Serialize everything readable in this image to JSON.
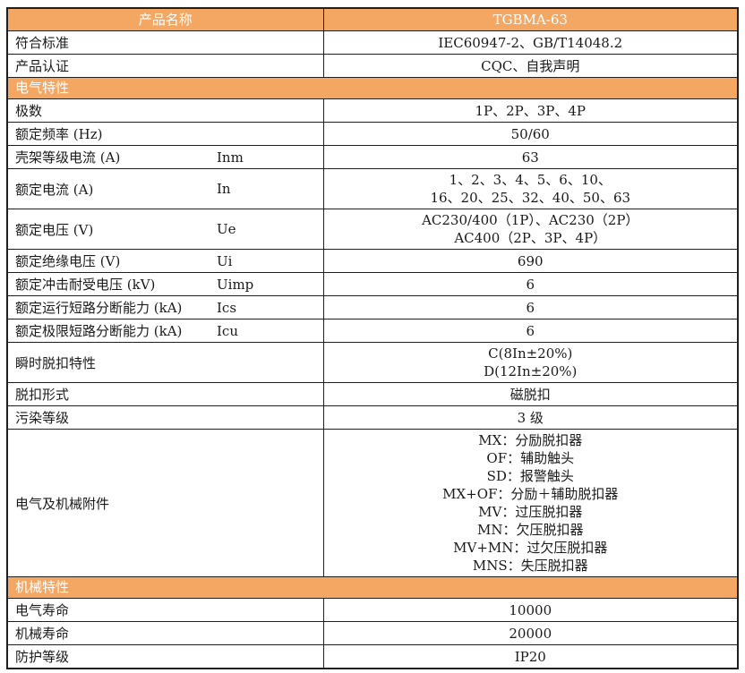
{
  "colors": {
    "accent": "#F4A763",
    "border": "#1F1F1F",
    "body_text": "#1A1A1A",
    "header_text": "#FFFFFF"
  },
  "header": {
    "label": "产品名称",
    "value": "TGBMA-63"
  },
  "rows": [
    {
      "type": "data",
      "label": "符合标准",
      "symbol": "",
      "lines": [
        "IEC60947-2、GB/T14048.2"
      ]
    },
    {
      "type": "data",
      "label": "产品认证",
      "symbol": "",
      "lines": [
        "CQC、自我声明"
      ]
    },
    {
      "type": "section",
      "title": "电气特性"
    },
    {
      "type": "data",
      "label": "极数",
      "symbol": "",
      "lines": [
        "1P、2P、3P、4P"
      ]
    },
    {
      "type": "data",
      "label": "额定频率 (Hz)",
      "symbol": "",
      "lines": [
        "50/60"
      ]
    },
    {
      "type": "data",
      "label": "壳架等级电流 (A)",
      "symbol": "Inm",
      "lines": [
        "63"
      ]
    },
    {
      "type": "data",
      "label": "额定电流 (A)",
      "symbol": "In",
      "lines": [
        "1、2、3、4、5、6、10、",
        "16、20、25、32、40、50、63"
      ]
    },
    {
      "type": "data",
      "label": "额定电压 (V)",
      "symbol": "Ue",
      "lines": [
        "AC230/400（1P）、AC230（2P）",
        "AC400（2P、3P、4P）"
      ]
    },
    {
      "type": "data",
      "label": "额定绝缘电压 (V)",
      "symbol": "Ui",
      "lines": [
        "690"
      ]
    },
    {
      "type": "data",
      "label": "额定冲击耐受电压 (kV)",
      "symbol": "Uimp",
      "lines": [
        "6"
      ]
    },
    {
      "type": "data",
      "label": "额定运行短路分断能力 (kA)",
      "symbol": "Ics",
      "lines": [
        "6"
      ]
    },
    {
      "type": "data",
      "label": "额定极限短路分断能力 (kA)",
      "symbol": "Icu",
      "lines": [
        "6"
      ]
    },
    {
      "type": "data",
      "label": "瞬时脱扣特性",
      "symbol": "",
      "lines": [
        "C(8In±20%)",
        "D(12In±20%)"
      ]
    },
    {
      "type": "data",
      "label": "脱扣形式",
      "symbol": "",
      "lines": [
        "磁脱扣"
      ]
    },
    {
      "type": "data",
      "label": "污染等级",
      "symbol": "",
      "lines": [
        "3 级"
      ]
    },
    {
      "type": "data",
      "label": "电气及机械附件",
      "symbol": "",
      "lines": [
        "MX：分励脱扣器",
        "OF：辅助触头",
        "SD：报警触头",
        "MX+OF：分励＋辅助脱扣器",
        "MV：过压脱扣器",
        "MN：欠压脱扣器",
        "MV+MN：过欠压脱扣器",
        "MNS：失压脱扣器"
      ]
    },
    {
      "type": "section",
      "title": "机械特性"
    },
    {
      "type": "data",
      "label": "电气寿命",
      "symbol": "",
      "lines": [
        "10000"
      ]
    },
    {
      "type": "data",
      "label": "机械寿命",
      "symbol": "",
      "lines": [
        "20000"
      ]
    },
    {
      "type": "data",
      "label": "防护等级",
      "symbol": "",
      "lines": [
        "IP20"
      ]
    }
  ]
}
